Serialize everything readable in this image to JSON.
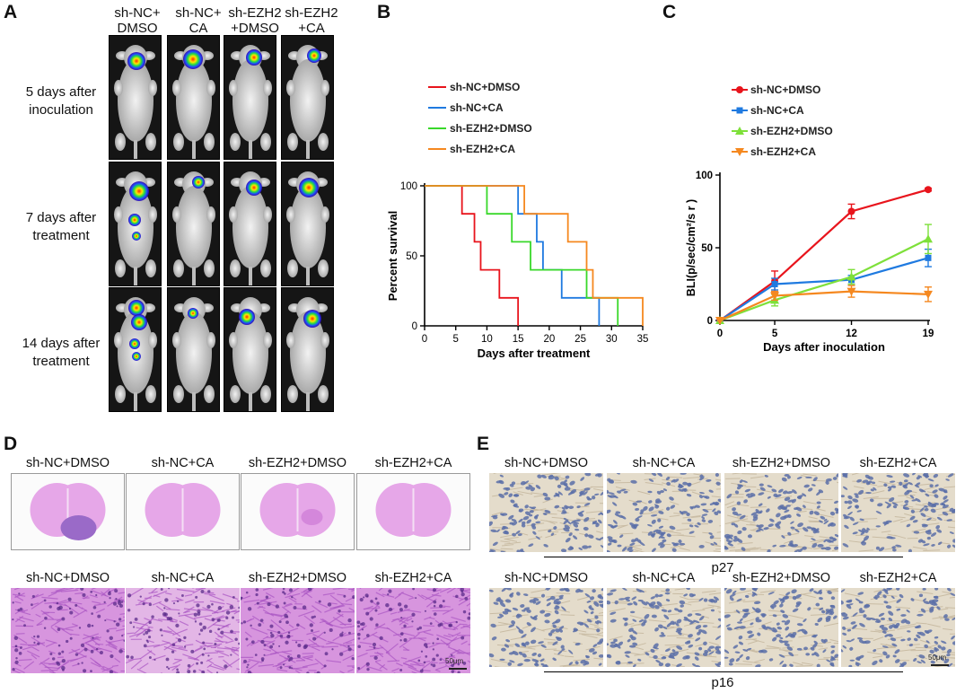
{
  "panel_letters": {
    "a": "A",
    "b": "B",
    "c": "C",
    "d": "D",
    "e": "E"
  },
  "panel_a": {
    "columns": [
      "sh-NC+\nDMSO",
      "sh-NC+\nCA",
      "sh-EZH2\n+DMSO",
      "sh-EZH2\n+CA"
    ],
    "rows": [
      "5 days after\ninoculation",
      "7 days after\ntreatment",
      "14 days after\ntreatment"
    ]
  },
  "chart_data": [
    {
      "type": "line",
      "subtype": "kaplan-meier",
      "xlabel": "Days after treatment",
      "ylabel": "Percent survival",
      "xlim": [
        0,
        35
      ],
      "ylim": [
        0,
        100
      ],
      "xticks": [
        0,
        5,
        10,
        15,
        20,
        25,
        30,
        35
      ],
      "yticks": [
        0,
        50,
        100
      ],
      "legend_position": "top",
      "series": [
        {
          "name": "sh-NC+DMSO",
          "color": "#e8141c",
          "steps": [
            [
              0,
              100
            ],
            [
              6,
              100
            ],
            [
              6,
              80
            ],
            [
              8,
              80
            ],
            [
              8,
              60
            ],
            [
              9,
              60
            ],
            [
              9,
              40
            ],
            [
              12,
              40
            ],
            [
              12,
              20
            ],
            [
              15,
              20
            ],
            [
              15,
              0
            ]
          ]
        },
        {
          "name": "sh-NC+CA",
          "color": "#1f7ae0",
          "steps": [
            [
              0,
              100
            ],
            [
              15,
              100
            ],
            [
              15,
              80
            ],
            [
              18,
              80
            ],
            [
              18,
              60
            ],
            [
              19,
              60
            ],
            [
              19,
              40
            ],
            [
              22,
              40
            ],
            [
              22,
              20
            ],
            [
              28,
              20
            ],
            [
              28,
              0
            ]
          ]
        },
        {
          "name": "sh-EZH2+DMSO",
          "color": "#39d82a",
          "steps": [
            [
              0,
              100
            ],
            [
              10,
              100
            ],
            [
              10,
              80
            ],
            [
              14,
              80
            ],
            [
              14,
              60
            ],
            [
              17,
              60
            ],
            [
              17,
              40
            ],
            [
              26,
              40
            ],
            [
              26,
              20
            ],
            [
              31,
              20
            ],
            [
              31,
              0
            ]
          ]
        },
        {
          "name": "sh-EZH2+CA",
          "color": "#f5881f",
          "steps": [
            [
              0,
              100
            ],
            [
              16,
              100
            ],
            [
              16,
              80
            ],
            [
              23,
              80
            ],
            [
              23,
              60
            ],
            [
              26,
              60
            ],
            [
              26,
              40
            ],
            [
              27,
              40
            ],
            [
              27,
              20
            ],
            [
              35,
              20
            ],
            [
              35,
              0
            ]
          ]
        }
      ]
    },
    {
      "type": "line",
      "xlabel": "Days after inoculation",
      "ylabel": "BLI(p/sec/cm²/s r )",
      "ylim": [
        0,
        100
      ],
      "yticks": [
        0,
        50,
        100
      ],
      "categories": [
        0,
        5,
        12,
        19
      ],
      "legend_position": "top",
      "series": [
        {
          "name": "sh-NC+DMSO",
          "color": "#e8141c",
          "marker": "circle",
          "values": [
            0,
            27,
            75,
            90
          ],
          "errors": [
            0,
            7,
            5,
            1
          ]
        },
        {
          "name": "sh-NC+CA",
          "color": "#1f7ae0",
          "marker": "square",
          "values": [
            0,
            25,
            28,
            43
          ],
          "errors": [
            0,
            4,
            3,
            6
          ]
        },
        {
          "name": "sh-EZH2+DMSO",
          "color": "#7ee03a",
          "marker": "triangle-up",
          "values": [
            0,
            14,
            30,
            56
          ],
          "errors": [
            0,
            4,
            5,
            10
          ]
        },
        {
          "name": "sh-EZH2+CA",
          "color": "#f5881f",
          "marker": "triangle-down",
          "values": [
            0,
            17,
            20,
            18
          ],
          "errors": [
            0,
            3,
            4,
            5
          ]
        }
      ]
    }
  ],
  "panel_d": {
    "top_labels": [
      "sh-NC+DMSO",
      "sh-NC+CA",
      "sh-EZH2+DMSO",
      "sh-EZH2+CA"
    ],
    "bottom_labels": [
      "sh-NC+DMSO",
      "sh-NC+CA",
      "sh-EZH2+DMSO",
      "sh-EZH2+CA"
    ],
    "scale_bar": "50μm"
  },
  "panel_e": {
    "top_labels": [
      "sh-NC+DMSO",
      "sh-NC+CA",
      "sh-EZH2+DMSO",
      "sh-EZH2+CA"
    ],
    "bottom_labels": [
      "sh-NC+DMSO",
      "sh-NC+CA",
      "sh-EZH2+DMSO",
      "sh-EZH2+CA"
    ],
    "marker_top": "p27",
    "marker_bottom": "p16",
    "scale_bar": "50μm"
  },
  "colors": {
    "he_stain": "#c88ad6",
    "ihc_background": "#e4dccb",
    "ihc_nuclei": "#5a6fa8"
  }
}
